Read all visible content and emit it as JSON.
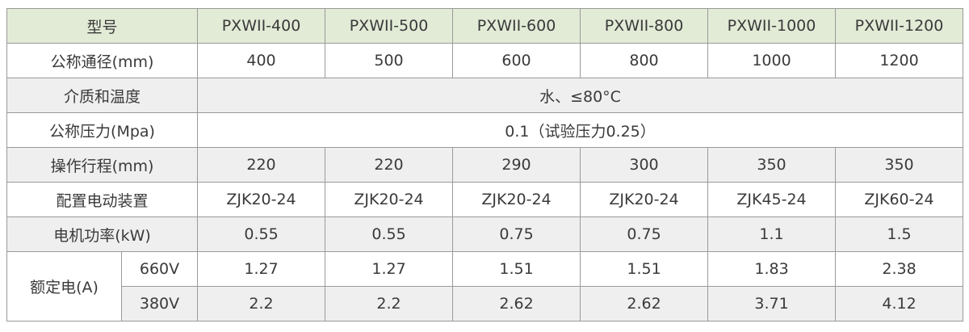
{
  "table": {
    "header": [
      "型号",
      "PXWII-400",
      "PXWII-500",
      "PXWII-600",
      "PXWII-800",
      "PXWII-1000",
      "PXWII-1200"
    ],
    "rows": [
      {
        "label": "公称通径(mm)",
        "values": [
          "400",
          "500",
          "600",
          "800",
          "1000",
          "1200"
        ]
      },
      {
        "label": "介质和温度",
        "merged": "水、≤80°C"
      },
      {
        "label": "公称压力(Mpa)",
        "merged": "0.1（试验压力0.25）"
      },
      {
        "label": "操作行程(mm)",
        "values": [
          "220",
          "220",
          "290",
          "300",
          "350",
          "350"
        ]
      },
      {
        "label": "配置电动装置",
        "values": [
          "ZJK20-24",
          "ZJK20-24",
          "ZJK20-24",
          "ZJK20-24",
          "ZJK45-24",
          "ZJK60-24"
        ]
      },
      {
        "label": "电机功率(kW)",
        "values": [
          "0.55",
          "0.55",
          "0.75",
          "0.75",
          "1.1",
          "1.5"
        ]
      }
    ],
    "group": {
      "label": "额定电(A)",
      "rows": [
        {
          "label": "660V",
          "values": [
            "1.27",
            "1.27",
            "1.51",
            "1.51",
            "1.83",
            "2.38"
          ]
        },
        {
          "label": "380V",
          "values": [
            "2.2",
            "2.2",
            "2.62",
            "2.62",
            "3.71",
            "4.12"
          ]
        }
      ]
    }
  }
}
